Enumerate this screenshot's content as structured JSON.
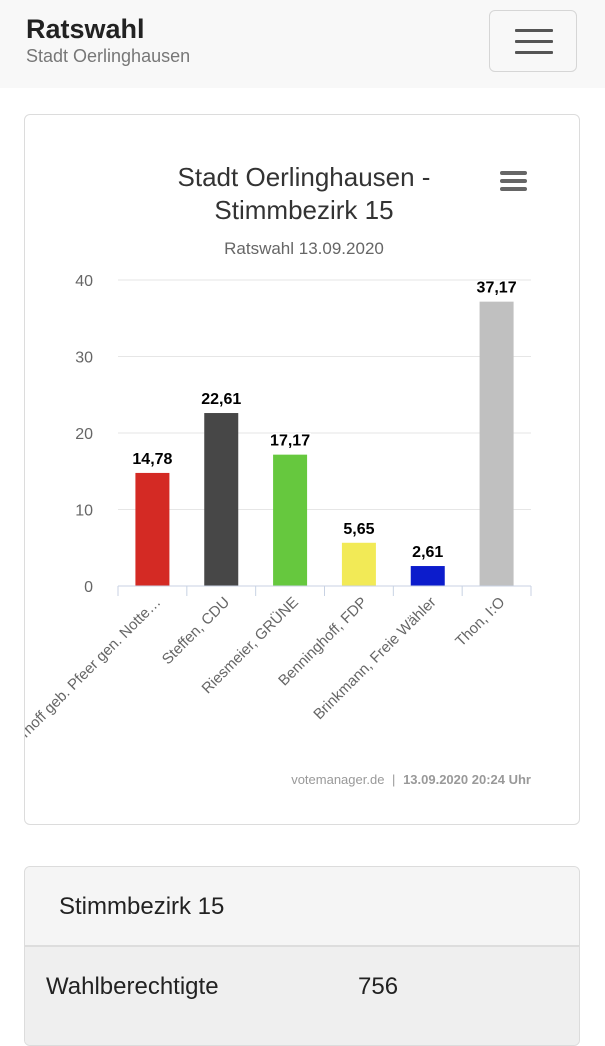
{
  "header": {
    "title": "Ratswahl",
    "subtitle": "Stadt Oerlinghausen"
  },
  "chart_data": {
    "type": "bar",
    "title_lines": [
      "Stadt Oerlinghausen -",
      "Stimmbezirk 15"
    ],
    "subtitle": "Ratswahl 13.09.2020",
    "categories": [
      "Moorhoff geb. Pfeer gen. Notte…",
      "Steffen, CDU",
      "Riesmeier, GRÜNE",
      "Benninghoff, FDP",
      "Brinkmann, Freie Wähler",
      "Thon, I:O"
    ],
    "values": [
      14.78,
      22.61,
      17.17,
      5.65,
      2.61,
      37.17
    ],
    "data_labels": [
      "14,78",
      "22,61",
      "17,17",
      "5,65",
      "2,61",
      "37,17"
    ],
    "colors": [
      "#d42a24",
      "#474747",
      "#66c83e",
      "#f2ea56",
      "#0c1ccc",
      "#c0c0c0"
    ],
    "ylim": [
      0,
      40
    ],
    "y_ticks": [
      0,
      10,
      20,
      30,
      40
    ],
    "grid": true,
    "credits": {
      "source": "votemanager.de",
      "separator": "|",
      "timestamp": "13.09.2020 20:24 Uhr"
    }
  },
  "stats": {
    "title": "Stimmbezirk 15",
    "rows": [
      {
        "label": "Wahlberechtigte",
        "value": "756"
      }
    ]
  }
}
